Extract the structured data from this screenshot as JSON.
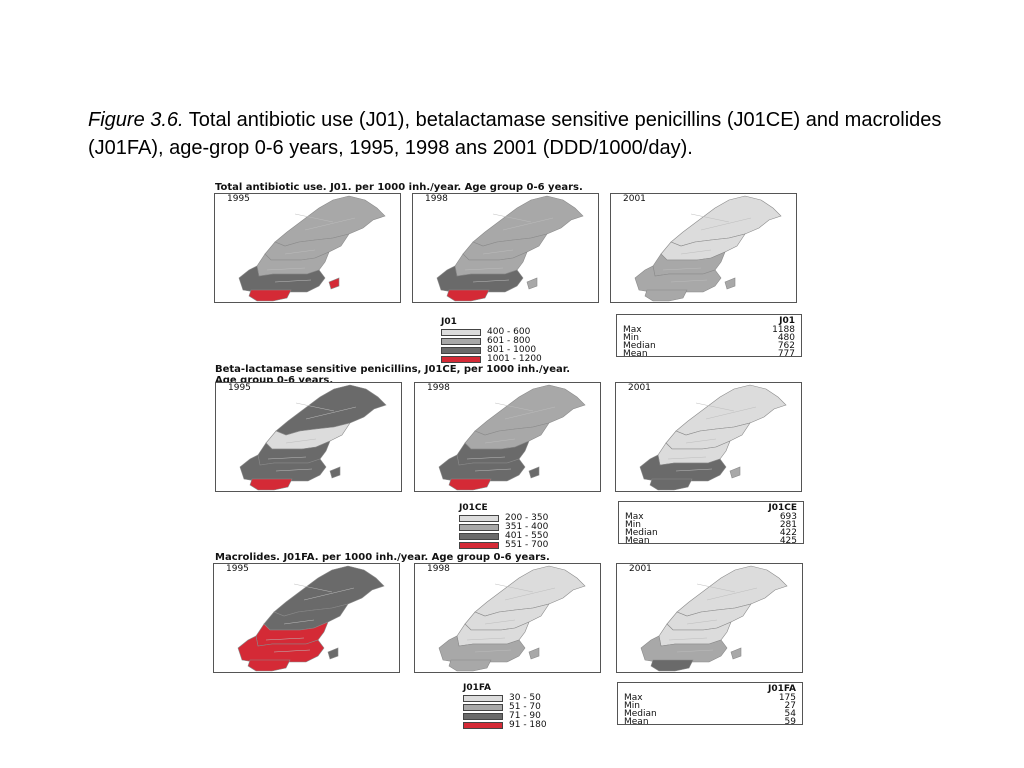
{
  "caption": {
    "label": "Figure 3.6.",
    "text": " Total antibiotic use (J01), betalactamase sensitive penicillins (J01CE) and macrolides (J01FA), age-grop 0-6 years, 1995, 1998 ans 2001 (DDD/1000/day)."
  },
  "colors": {
    "c1": "#dcdcdc",
    "c2": "#a8a8a8",
    "c3": "#6a6a6a",
    "c4": "#d42a36"
  },
  "sections": [
    {
      "title": "Total antibiotic use. J01. per 1000 inh./year. Age group 0-6 years.",
      "years": [
        "1995",
        "1998",
        "2001"
      ],
      "map_levels": [
        {
          "north": "c2",
          "upper": "c2",
          "mid": "c2",
          "south": "c3",
          "tip": "c4",
          "island": "c4"
        },
        {
          "north": "c2",
          "upper": "c2",
          "mid": "c2",
          "south": "c3",
          "tip": "c4",
          "island": "c2"
        },
        {
          "north": "c1",
          "upper": "c1",
          "mid": "c2",
          "south": "c2",
          "tip": "c2",
          "island": "c2"
        }
      ],
      "legend": {
        "title": "J01",
        "items": [
          {
            "range": "400 - 600",
            "color": "c1"
          },
          {
            "range": "601 - 800",
            "color": "c2"
          },
          {
            "range": "801 - 1000",
            "color": "c3"
          },
          {
            "range": "1001 - 1200",
            "color": "c4"
          }
        ]
      },
      "stats": {
        "header": "J01",
        "rows": [
          {
            "label": "Max",
            "value": "1188"
          },
          {
            "label": "Min",
            "value": "480"
          },
          {
            "label": "Median",
            "value": "762"
          },
          {
            "label": "Mean",
            "value": "777"
          }
        ]
      }
    },
    {
      "title": "Beta-lactamase sensitive penicillins, J01CE, per 1000 inh./year.\nAge group 0-6 years.",
      "years": [
        "1995",
        "1998",
        "2001"
      ],
      "map_levels": [
        {
          "north": "c3",
          "upper": "c1",
          "mid": "c3",
          "south": "c3",
          "tip": "c4",
          "island": "c3"
        },
        {
          "north": "c2",
          "upper": "c2",
          "mid": "c3",
          "south": "c3",
          "tip": "c4",
          "island": "c3"
        },
        {
          "north": "c1",
          "upper": "c1",
          "mid": "c1",
          "south": "c3",
          "tip": "c3",
          "island": "c2"
        }
      ],
      "legend": {
        "title": "J01CE",
        "items": [
          {
            "range": "200 - 350",
            "color": "c1"
          },
          {
            "range": "351 - 400",
            "color": "c2"
          },
          {
            "range": "401 - 550",
            "color": "c3"
          },
          {
            "range": "551 - 700",
            "color": "c4"
          }
        ]
      },
      "stats": {
        "header": "J01CE",
        "rows": [
          {
            "label": "Max",
            "value": "693"
          },
          {
            "label": "Min",
            "value": "281"
          },
          {
            "label": "Median",
            "value": "422"
          },
          {
            "label": "Mean",
            "value": "425"
          }
        ]
      }
    },
    {
      "title": "Macrolides. J01FA. per 1000 inh./year. Age group 0-6 years.",
      "years": [
        "1995",
        "1998",
        "2001"
      ],
      "map_levels": [
        {
          "north": "c3",
          "upper": "c3",
          "mid": "c4",
          "south": "c4",
          "tip": "c4",
          "island": "c3"
        },
        {
          "north": "c1",
          "upper": "c1",
          "mid": "c1",
          "south": "c2",
          "tip": "c2",
          "island": "c2"
        },
        {
          "north": "c1",
          "upper": "c1",
          "mid": "c1",
          "south": "c2",
          "tip": "c3",
          "island": "c2"
        }
      ],
      "legend": {
        "title": "J01FA",
        "items": [
          {
            "range": "30 - 50",
            "color": "c1"
          },
          {
            "range": "51 - 70",
            "color": "c2"
          },
          {
            "range": "71 - 90",
            "color": "c3"
          },
          {
            "range": "91 - 180",
            "color": "c4"
          }
        ]
      },
      "stats": {
        "header": "J01FA",
        "rows": [
          {
            "label": "Max",
            "value": "175"
          },
          {
            "label": "Min",
            "value": "27"
          },
          {
            "label": "Median",
            "value": "54"
          },
          {
            "label": "Mean",
            "value": "59"
          }
        ]
      }
    }
  ]
}
